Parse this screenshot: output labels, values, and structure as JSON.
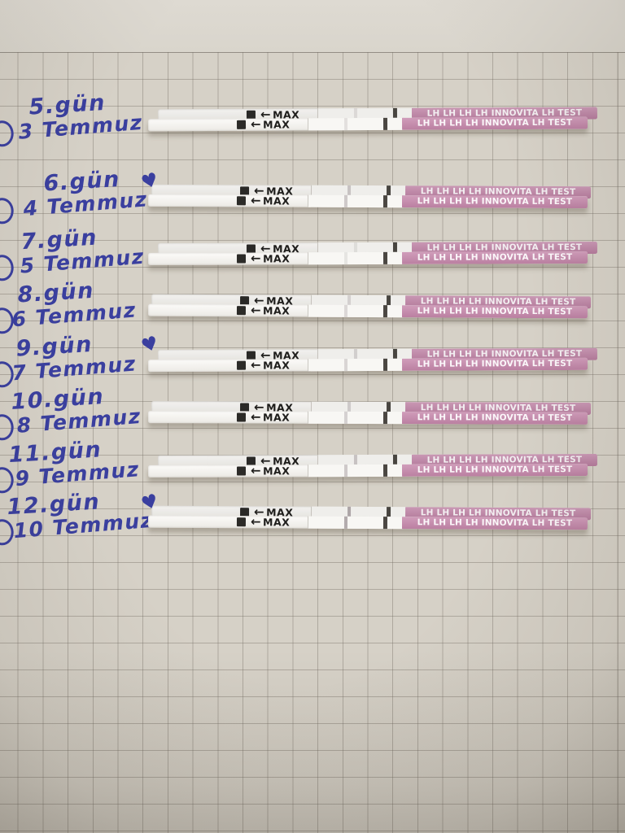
{
  "paper": {
    "type": "graph-paper",
    "background_color": "#d6d1c7",
    "grid_line_color": "#6c675d"
  },
  "ink_color": "#3a3f9f",
  "heart_symbol": "♥",
  "strip": {
    "arrow": "←",
    "max_label": "MAX",
    "brand_text": "LH LH LH LH INNOVITA LH TEST",
    "handle_color": "#c687ab",
    "control_line_color": "#4b4742",
    "strips_per_row": 2
  },
  "rows": [
    {
      "day": "5.gün",
      "date": "3 Temmuz",
      "heart": false,
      "test_line_opacity": 0.15
    },
    {
      "day": "6.gün",
      "date": "4 Temmuz",
      "heart": true,
      "test_line_opacity": 0.3
    },
    {
      "day": "7.gün",
      "date": "5 Temmuz",
      "heart": false,
      "test_line_opacity": 0.12
    },
    {
      "day": "8.gün",
      "date": "6 Temmuz",
      "heart": false,
      "test_line_opacity": 0.2
    },
    {
      "day": "9.gün",
      "date": "7 Temmuz",
      "heart": true,
      "test_line_opacity": 0.22
    },
    {
      "day": "10.gün",
      "date": "8 Temmuz",
      "heart": false,
      "test_line_opacity": 0.25
    },
    {
      "day": "11.gün",
      "date": "9 Temmuz",
      "heart": false,
      "test_line_opacity": 0.3
    },
    {
      "day": "12.gün",
      "date": "10 Temmuz",
      "heart": true,
      "test_line_opacity": 0.5
    }
  ]
}
